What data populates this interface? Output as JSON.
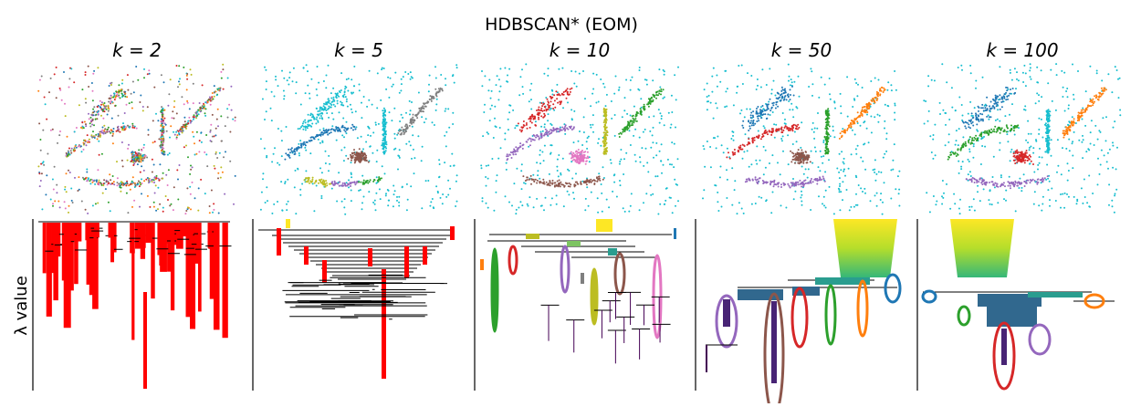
{
  "chart_data": {
    "type": "figure",
    "title": "HDBSCAN* (EOM)",
    "ylabel": "λ value",
    "panels": [
      {
        "title": "k = 2"
      },
      {
        "title": "k = 5"
      },
      {
        "title": "k = 10"
      },
      {
        "title": "k = 50"
      },
      {
        "title": "k = 100"
      }
    ]
  }
}
